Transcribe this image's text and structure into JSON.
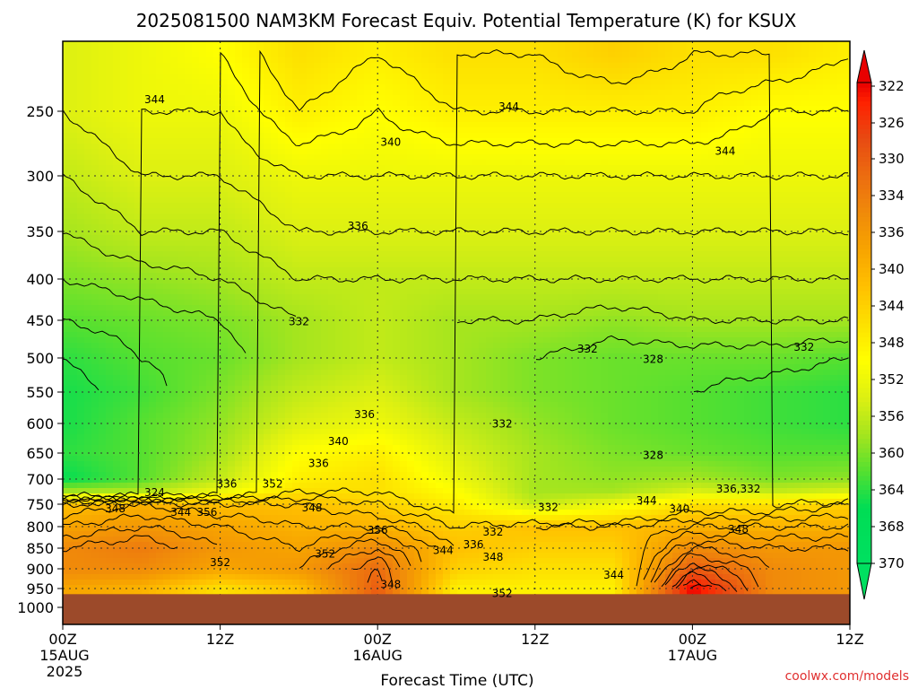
{
  "title": "2025081500 NAM3KM Forecast Equiv. Potential Temperature (K) for KSUX",
  "chart_data": {
    "type": "heatmap",
    "title": "2025081500 NAM3KM Forecast Equiv. Potential Temperature (K) for KSUX",
    "xlabel": "Forecast Time (UTC)",
    "ylabel": "",
    "x_ticks": [
      {
        "hour": 0,
        "label": "00Z",
        "sub": "15AUG",
        "sub2": "2025"
      },
      {
        "hour": 12,
        "label": "12Z",
        "sub": "",
        "sub2": ""
      },
      {
        "hour": 24,
        "label": "00Z",
        "sub": "16AUG",
        "sub2": ""
      },
      {
        "hour": 36,
        "label": "12Z",
        "sub": "",
        "sub2": ""
      },
      {
        "hour": 48,
        "label": "00Z",
        "sub": "17AUG",
        "sub2": ""
      },
      {
        "hour": 60,
        "label": "12Z",
        "sub": "",
        "sub2": ""
      }
    ],
    "xlim": [
      0,
      60
    ],
    "y_ticks": [
      250,
      300,
      350,
      400,
      450,
      500,
      550,
      600,
      650,
      700,
      750,
      800,
      850,
      900,
      950,
      1000
    ],
    "ylim": [
      200,
      1000
    ],
    "surface_pressure": 965,
    "colorbar": {
      "ticks": [
        322,
        326,
        330,
        334,
        336,
        340,
        344,
        348,
        352,
        356,
        360,
        364,
        368,
        370
      ],
      "range": [
        320,
        372
      ]
    },
    "color_stops": [
      {
        "value": 320,
        "color": "#00e060"
      },
      {
        "value": 326,
        "color": "#00dd55"
      },
      {
        "value": 330,
        "color": "#55e030"
      },
      {
        "value": 334,
        "color": "#a6e51e"
      },
      {
        "value": 338,
        "color": "#ddf012"
      },
      {
        "value": 342,
        "color": "#ffff00"
      },
      {
        "value": 346,
        "color": "#fde000"
      },
      {
        "value": 350,
        "color": "#ffc000"
      },
      {
        "value": 354,
        "color": "#f7a400"
      },
      {
        "value": 358,
        "color": "#f08a0a"
      },
      {
        "value": 362,
        "color": "#ec6c10"
      },
      {
        "value": 366,
        "color": "#e84a12"
      },
      {
        "value": 370,
        "color": "#ff2000"
      },
      {
        "value": 372,
        "color": "#e80000"
      }
    ],
    "profiles": [
      {
        "hour": 0,
        "values": {
          "200": 338,
          "250": 338,
          "300": 336,
          "350": 334,
          "400": 332,
          "450": 330,
          "500": 328,
          "550": 327,
          "600": 327,
          "650": 328,
          "700": 326,
          "725": 334,
          "750": 350,
          "800": 354,
          "850": 358,
          "900": 358,
          "950": 354,
          "965": 354
        }
      },
      {
        "hour": 6,
        "values": {
          "200": 340,
          "250": 340,
          "300": 338,
          "350": 336,
          "400": 333,
          "450": 331,
          "500": 330,
          "550": 329,
          "600": 330,
          "650": 330,
          "700": 330,
          "725": 335,
          "750": 352,
          "800": 356,
          "850": 360,
          "900": 358,
          "950": 352,
          "965": 352
        }
      },
      {
        "hour": 12,
        "values": {
          "200": 342,
          "250": 340,
          "300": 338,
          "350": 336,
          "400": 334,
          "450": 332,
          "500": 331,
          "550": 332,
          "600": 333,
          "650": 334,
          "700": 336,
          "725": 340,
          "750": 350,
          "800": 354,
          "850": 356,
          "900": 354,
          "950": 346,
          "965": 346
        }
      },
      {
        "hour": 18,
        "values": {
          "200": 346,
          "250": 344,
          "300": 340,
          "350": 338,
          "400": 336,
          "450": 334,
          "500": 334,
          "550": 336,
          "600": 338,
          "650": 342,
          "700": 344,
          "725": 346,
          "750": 350,
          "800": 352,
          "850": 354,
          "900": 356,
          "950": 350,
          "965": 350
        }
      },
      {
        "hour": 24,
        "values": {
          "200": 344,
          "250": 342,
          "300": 340,
          "350": 338,
          "400": 336,
          "450": 336,
          "500": 336,
          "550": 338,
          "600": 340,
          "650": 344,
          "700": 346,
          "725": 346,
          "750": 348,
          "800": 352,
          "850": 358,
          "900": 362,
          "950": 364,
          "965": 364
        }
      },
      {
        "hour": 30,
        "values": {
          "200": 346,
          "250": 344,
          "300": 340,
          "350": 338,
          "400": 336,
          "450": 334,
          "500": 334,
          "550": 334,
          "600": 336,
          "650": 338,
          "700": 340,
          "725": 342,
          "750": 344,
          "800": 348,
          "850": 350,
          "900": 348,
          "950": 344,
          "965": 344
        }
      },
      {
        "hour": 36,
        "values": {
          "200": 346,
          "250": 344,
          "300": 340,
          "350": 338,
          "400": 336,
          "450": 334,
          "500": 332,
          "550": 332,
          "600": 333,
          "650": 334,
          "700": 334,
          "725": 334,
          "750": 336,
          "800": 350,
          "850": 348,
          "900": 346,
          "950": 344,
          "965": 344
        }
      },
      {
        "hour": 42,
        "values": {
          "200": 348,
          "250": 344,
          "300": 340,
          "350": 338,
          "400": 336,
          "450": 333,
          "500": 331,
          "550": 331,
          "600": 331,
          "650": 332,
          "700": 333,
          "725": 334,
          "750": 340,
          "800": 350,
          "850": 348,
          "900": 346,
          "950": 344,
          "965": 344
        }
      },
      {
        "hour": 48,
        "values": {
          "200": 346,
          "250": 344,
          "300": 340,
          "350": 338,
          "400": 336,
          "450": 334,
          "500": 331,
          "550": 330,
          "600": 330,
          "650": 331,
          "700": 334,
          "725": 338,
          "750": 346,
          "800": 352,
          "850": 358,
          "900": 364,
          "950": 372,
          "965": 372
        }
      },
      {
        "hour": 54,
        "values": {
          "200": 346,
          "250": 342,
          "300": 340,
          "350": 338,
          "400": 336,
          "450": 334,
          "500": 331,
          "550": 329,
          "600": 329,
          "650": 330,
          "700": 332,
          "725": 336,
          "750": 346,
          "800": 352,
          "850": 356,
          "900": 358,
          "950": 358,
          "965": 358
        }
      },
      {
        "hour": 60,
        "values": {
          "200": 344,
          "250": 342,
          "300": 340,
          "350": 338,
          "400": 336,
          "450": 334,
          "500": 330,
          "550": 328,
          "600": 328,
          "650": 330,
          "700": 333,
          "725": 338,
          "750": 348,
          "800": 352,
          "850": 356,
          "900": 356,
          "950": 356,
          "965": 356
        }
      }
    ],
    "contour_labels": [
      {
        "text": "344",
        "hour": 7,
        "p": 240
      },
      {
        "text": "344",
        "hour": 34,
        "p": 246
      },
      {
        "text": "344",
        "hour": 50.5,
        "p": 281
      },
      {
        "text": "340",
        "hour": 25,
        "p": 274
      },
      {
        "text": "336",
        "hour": 22.5,
        "p": 345
      },
      {
        "text": "332",
        "hour": 18,
        "p": 452
      },
      {
        "text": "332",
        "hour": 40,
        "p": 488
      },
      {
        "text": "332",
        "hour": 56.5,
        "p": 486
      },
      {
        "text": "328",
        "hour": 45,
        "p": 502
      },
      {
        "text": "336",
        "hour": 23,
        "p": 586
      },
      {
        "text": "332",
        "hour": 33.5,
        "p": 601
      },
      {
        "text": "340",
        "hour": 21,
        "p": 630
      },
      {
        "text": "336",
        "hour": 19.5,
        "p": 670
      },
      {
        "text": "328",
        "hour": 45,
        "p": 654
      },
      {
        "text": "324",
        "hour": 7,
        "p": 727
      },
      {
        "text": "336",
        "hour": 12.5,
        "p": 710
      },
      {
        "text": "352",
        "hour": 16,
        "p": 710
      },
      {
        "text": "348",
        "hour": 4,
        "p": 760
      },
      {
        "text": "344",
        "hour": 9,
        "p": 768
      },
      {
        "text": "356",
        "hour": 11,
        "p": 768
      },
      {
        "text": "348",
        "hour": 19,
        "p": 758
      },
      {
        "text": "356",
        "hour": 24,
        "p": 808
      },
      {
        "text": "344",
        "hour": 29,
        "p": 855
      },
      {
        "text": "336",
        "hour": 31.3,
        "p": 842
      },
      {
        "text": "332",
        "hour": 32.8,
        "p": 812
      },
      {
        "text": "348",
        "hour": 32.8,
        "p": 872
      },
      {
        "text": "332",
        "hour": 37,
        "p": 757
      },
      {
        "text": "344",
        "hour": 44.5,
        "p": 743
      },
      {
        "text": "340",
        "hour": 47,
        "p": 761
      },
      {
        "text": "336,332",
        "hour": 51.5,
        "p": 720
      },
      {
        "text": "348",
        "hour": 51.5,
        "p": 806
      },
      {
        "text": "352",
        "hour": 12,
        "p": 885
      },
      {
        "text": "352",
        "hour": 20,
        "p": 864
      },
      {
        "text": "348",
        "hour": 25,
        "p": 940
      },
      {
        "text": "352",
        "hour": 33.5,
        "p": 963
      },
      {
        "text": "344",
        "hour": 42,
        "p": 916
      }
    ]
  },
  "credit": "coolwx.com/models"
}
